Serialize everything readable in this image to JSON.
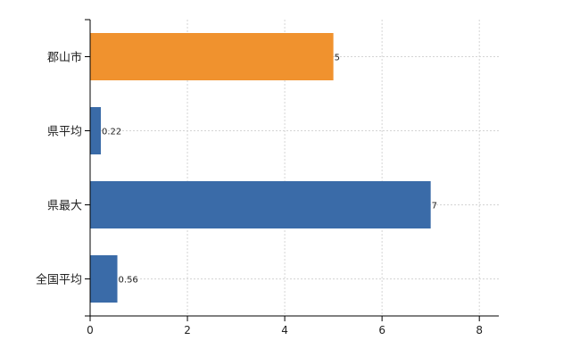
{
  "chart_data": {
    "type": "bar",
    "orientation": "horizontal",
    "title": "",
    "xlabel": "",
    "ylabel": "",
    "categories": [
      "郡山市",
      "県平均",
      "県最大",
      "全国平均"
    ],
    "values": [
      5,
      0.22,
      7,
      0.56
    ],
    "value_labels": [
      "5",
      "0.22",
      "7",
      "0.56"
    ],
    "bar_colors": [
      "#f0922e",
      "#3a6ba8",
      "#3a6ba8",
      "#3a6ba8"
    ],
    "xlim": [
      0,
      8.4
    ],
    "xticks": [
      0,
      2,
      4,
      6,
      8
    ],
    "xtick_labels": [
      "0",
      "2",
      "4",
      "6",
      "8"
    ],
    "grid": true,
    "legend": "none"
  }
}
